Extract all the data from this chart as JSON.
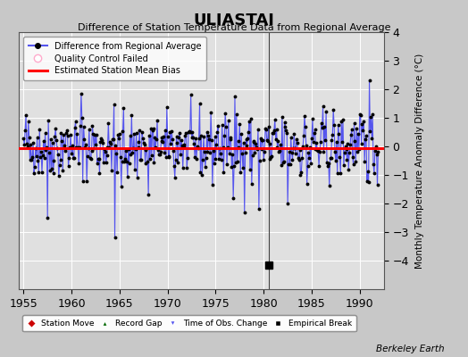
{
  "title": "ULIASTAI",
  "subtitle": "Difference of Station Temperature Data from Regional Average",
  "ylabel": "Monthly Temperature Anomaly Difference (°C)",
  "xlabel_years": [
    1955,
    1960,
    1965,
    1970,
    1975,
    1980,
    1985,
    1990
  ],
  "xlim": [
    1954.5,
    1992.5
  ],
  "ylim": [
    -5,
    4
  ],
  "yticks": [
    -4,
    -3,
    -2,
    -1,
    0,
    1,
    2,
    3,
    4
  ],
  "bias_value": -0.05,
  "background_color": "#c8c8c8",
  "plot_bg_color": "#e0e0e0",
  "grid_color": "#ffffff",
  "line_color": "#5555ee",
  "dot_color": "#000000",
  "bias_color": "#ff0000",
  "vertical_line_x": 1980.5,
  "empirical_break_x": 1980.5,
  "empirical_break_y": -4.15,
  "berkeley_earth_text": "Berkeley Earth",
  "seed": 42
}
